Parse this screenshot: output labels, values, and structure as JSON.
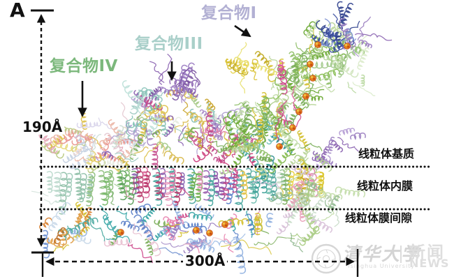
{
  "figure": {
    "panel_label": "A",
    "background": "#ffffff",
    "annotation_color": "#111111"
  },
  "complexes": {
    "c1": {
      "label": "复合物I",
      "color": "#b2b0d3"
    },
    "c3": {
      "label": "复合物III",
      "color": "#a9cfc9"
    },
    "c4": {
      "label": "复合物IV",
      "color": "#7cb87c"
    }
  },
  "measurements": {
    "height": "190Å",
    "width": "300Å"
  },
  "membrane": {
    "matrix": "线粒体基质",
    "inner": "线粒体内膜",
    "ims": "线粒体膜间隙"
  },
  "watermark": {
    "university_cn": "清华大学",
    "university_en": "Tsinghua University",
    "news_cn": "新闻",
    "news_en": "NEWS",
    "color": "#d6d6d6",
    "seal_icon": "tsinghua-seal"
  },
  "structure": {
    "cofactor_color": "#e08020",
    "cofactor_accent_light": "#f0c040",
    "cofactor_accent_dark": "#c84810",
    "palettes": {
      "c4": [
        "#e8948c",
        "#eab4a4",
        "#ddc04a",
        "#e6d87a",
        "#b7c87e",
        "#dfe3c4",
        "#c4d0e2",
        "#e2a4b4",
        "#f0d8d0"
      ],
      "pale": [
        "#e4c8d0",
        "#d8d4ea",
        "#dcd8c0",
        "#cadcd4"
      ],
      "c3": [
        "#9fcac2",
        "#84bfb4",
        "#8a62b0",
        "#a98cc8",
        "#c9a42c",
        "#ddc14a",
        "#79ad58",
        "#a5c985",
        "#c34a8a",
        "#e7ecdf",
        "#b0a0d0",
        "#d8b84a"
      ],
      "c3_teal": [
        "#9fcac2",
        "#7fbfb2",
        "#bcdfd8",
        "#8ec6bc"
      ],
      "c3_purple": [
        "#8a62b0",
        "#a98cc8",
        "#7a52a0",
        "#9878c0"
      ],
      "c3_magenta": [
        "#c34a8a",
        "#cc3a7a",
        "#e080ac",
        "#b43a74"
      ],
      "c1": [
        "#6aa832",
        "#84bb4e",
        "#a9cc82",
        "#c2dca8",
        "#8fbf68",
        "#d4c030",
        "#79ad58",
        "#b8d498"
      ],
      "c1_blue": [
        "#3b4fa0",
        "#4f62b4",
        "#7b8fd0",
        "#2e3f8c"
      ],
      "c1_yellow": [
        "#d8c030",
        "#e6d44e",
        "#c0a820",
        "#e8e070"
      ],
      "c1_pale": [
        "#b8d8a0",
        "#cfe4bc",
        "#a0c888",
        "#dceccc"
      ],
      "c1_pink": [
        "#e060a0",
        "#cc4488"
      ],
      "teal_mid": [
        "#2e8f8f",
        "#4aa8a0",
        "#6fbfb8",
        "#cc3a7a",
        "#79ad58",
        "#d4c030",
        "#55b0a8"
      ],
      "right_purple": [
        "#9b7fc0",
        "#8a62b0",
        "#b49cd4"
      ],
      "right_lobe": [
        "#a9cc82",
        "#c2dca8",
        "#e8a0b8",
        "#b8ccb0",
        "#90b890",
        "#d8c0d8",
        "#c8dcc8"
      ],
      "mem_pale": [
        "#a8cfc0",
        "#bcd9cc",
        "#8fc0a8",
        "#cfe0d8",
        "#9fcab8"
      ],
      "mem_green": [
        "#5a9e5a",
        "#77b868",
        "#4f9b4f",
        "#8fc07f",
        "#6aa85a"
      ],
      "mem_pink": [
        "#cc3a7a",
        "#e070a0",
        "#6faf4f",
        "#d4c030",
        "#4aa8a0",
        "#8a62b0",
        "#e898bc",
        "#b83a6a"
      ],
      "mem_purple": [
        "#c04888",
        "#9b62b0",
        "#5a7fc8",
        "#e090b8",
        "#4aa8a0",
        "#8a52a8"
      ],
      "mem_teal": [
        "#3a9e96",
        "#6fbfb0",
        "#8fc08f",
        "#c8dcc8",
        "#e0c040",
        "#55a89e"
      ],
      "mem_yellow": [
        "#d8c020",
        "#e8d040",
        "#c8a818",
        "#79ad58",
        "#e080ac",
        "#e6de6a"
      ],
      "bot_left": [
        "#d88030",
        "#e09a40",
        "#6a8fd0",
        "#8fb0e0",
        "#4aa8a0",
        "#d4c030",
        "#c8d8e8",
        "#b86820"
      ],
      "bot_mid": [
        "#e884b0",
        "#5a7fc8",
        "#3aa6a6",
        "#d4c030",
        "#cc4488",
        "#8fb0e0",
        "#e8c0d0",
        "#79ad58",
        "#9b7fc0"
      ]
    }
  }
}
